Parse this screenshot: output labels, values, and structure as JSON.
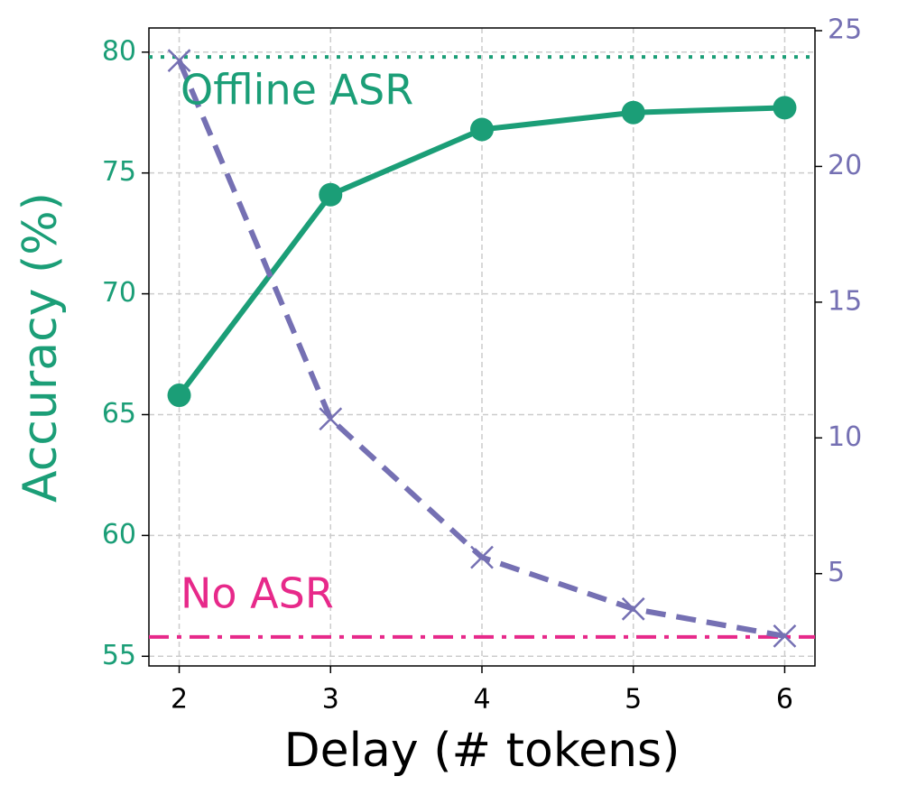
{
  "chart_data": {
    "type": "line",
    "xlabel": "Delay (# tokens)",
    "ylabel": "Accuracy (%)",
    "x": [
      2,
      3,
      4,
      5,
      6
    ],
    "xlim": [
      1.8,
      6.2
    ],
    "xticks": [
      2,
      3,
      4,
      5,
      6
    ],
    "ylim": [
      54.6,
      81.0
    ],
    "yticks": [
      55,
      60,
      65,
      70,
      75,
      80
    ],
    "y2lim": [
      1.6,
      25.1
    ],
    "y2ticks": [
      5,
      10,
      15,
      20,
      25
    ],
    "grid": true,
    "series": [
      {
        "color": "#1b9e77",
        "marker": "circle",
        "line_style": "solid",
        "values": [
          65.8,
          74.1,
          76.8,
          77.5,
          77.7
        ]
      },
      {
        "color": "#7570b3",
        "marker": "x",
        "line_style": "dashed",
        "axis": "y2",
        "values": [
          23.9,
          10.7,
          5.6,
          3.7,
          2.7
        ]
      }
    ],
    "reference_lines": [
      {
        "label": "Offline ASR",
        "value": 79.8,
        "color": "#1b9e77",
        "line_style": "dotted"
      },
      {
        "label": "No ASR",
        "value": 55.8,
        "color": "#e7298a",
        "line_style": "dashdot"
      }
    ]
  }
}
